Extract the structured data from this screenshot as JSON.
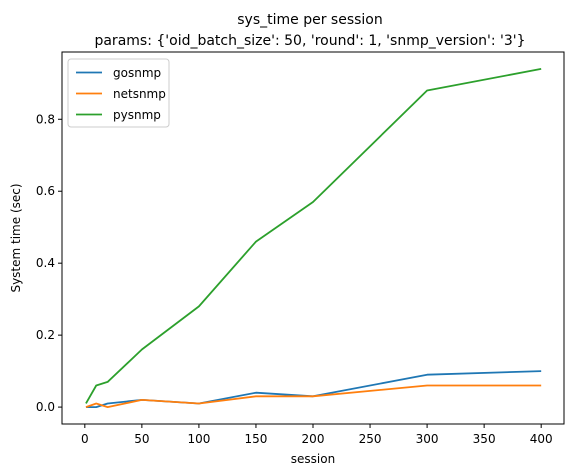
{
  "chart_data": {
    "type": "line",
    "title": "sys_time per session",
    "subtitle": "params: {'oid_batch_size': 50, 'round': 1, 'snmp_version': '3'}",
    "xlabel": "session",
    "ylabel": "System time (sec)",
    "xlim": [
      -20,
      420
    ],
    "ylim": [
      -0.047,
      0.987
    ],
    "xticks": [
      0,
      50,
      100,
      150,
      200,
      250,
      300,
      350,
      400
    ],
    "yticks": [
      0.0,
      0.2,
      0.4,
      0.6,
      0.8
    ],
    "ytick_labels": [
      "0.0",
      "0.2",
      "0.4",
      "0.6",
      "0.8"
    ],
    "legend_position": "top-left",
    "grid": false,
    "x": [
      1,
      10,
      20,
      50,
      100,
      150,
      200,
      300,
      400
    ],
    "series": [
      {
        "name": "gosnmp",
        "color": "#1f77b4",
        "values": [
          0.0,
          0.0,
          0.01,
          0.02,
          0.01,
          0.04,
          0.03,
          0.09,
          0.1
        ]
      },
      {
        "name": "netsnmp",
        "color": "#ff7f0e",
        "values": [
          0.0,
          0.01,
          0.0,
          0.02,
          0.01,
          0.03,
          0.03,
          0.06,
          0.06
        ]
      },
      {
        "name": "pysnmp",
        "color": "#2ca02c",
        "values": [
          0.01,
          0.06,
          0.07,
          0.16,
          0.28,
          0.46,
          0.57,
          0.88,
          0.94
        ]
      }
    ]
  }
}
